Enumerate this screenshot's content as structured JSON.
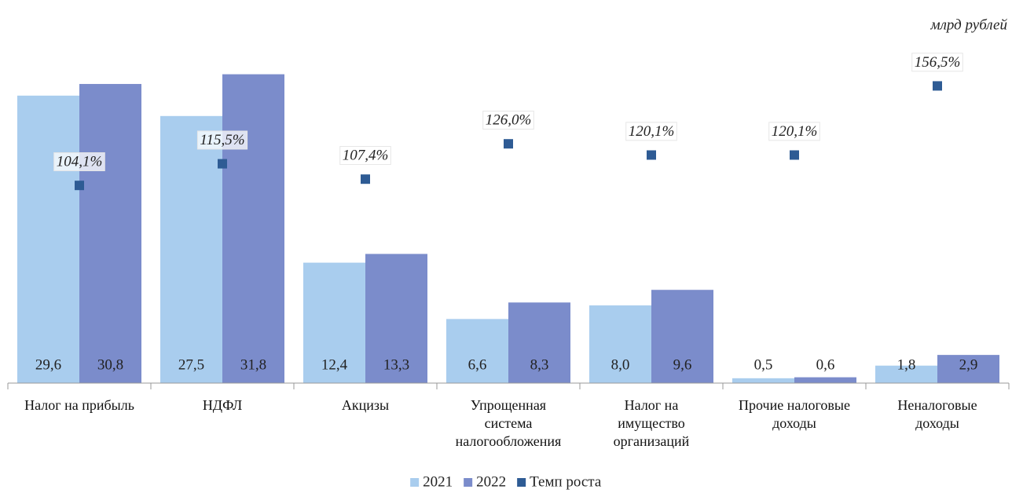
{
  "chart_data": {
    "type": "bar",
    "annotation": "млрд рублей",
    "categories": [
      "Налог на прибыль",
      "НДФЛ",
      "Акцизы",
      "Упрощенная\nсистема\nналогообложения",
      "Налог на\nимущество\nорганизаций",
      "Прочие налоговые\nдоходы",
      "Неналоговые\nдоходы"
    ],
    "ylim": [
      0,
      35
    ],
    "y2lim": [
      0,
      179
    ],
    "series": [
      {
        "name": "2021",
        "type": "bar",
        "color": "#a9cdee",
        "values": [
          29.6,
          27.5,
          12.4,
          6.6,
          8.0,
          0.5,
          1.8
        ],
        "value_labels": [
          "29,6",
          "27,5",
          "12,4",
          "6,6",
          "8,0",
          "0,5",
          "1,8"
        ]
      },
      {
        "name": "2022",
        "type": "bar",
        "color": "#7b8ccb",
        "values": [
          30.8,
          31.8,
          13.3,
          8.3,
          9.6,
          0.6,
          2.9
        ],
        "value_labels": [
          "30,8",
          "31,8",
          "13,3",
          "8,3",
          "9,6",
          "0,6",
          "2,9"
        ]
      },
      {
        "name": "Темп роста",
        "type": "scatter",
        "axis": "y2",
        "color": "#2e5b94",
        "values": [
          104.1,
          115.5,
          107.4,
          126.0,
          120.1,
          120.1,
          156.5
        ],
        "value_labels": [
          "104,1%",
          "115,5%",
          "107,4%",
          "126,0%",
          "120,1%",
          "120,1%",
          "156,5%"
        ]
      }
    ],
    "legend": "bottom"
  }
}
